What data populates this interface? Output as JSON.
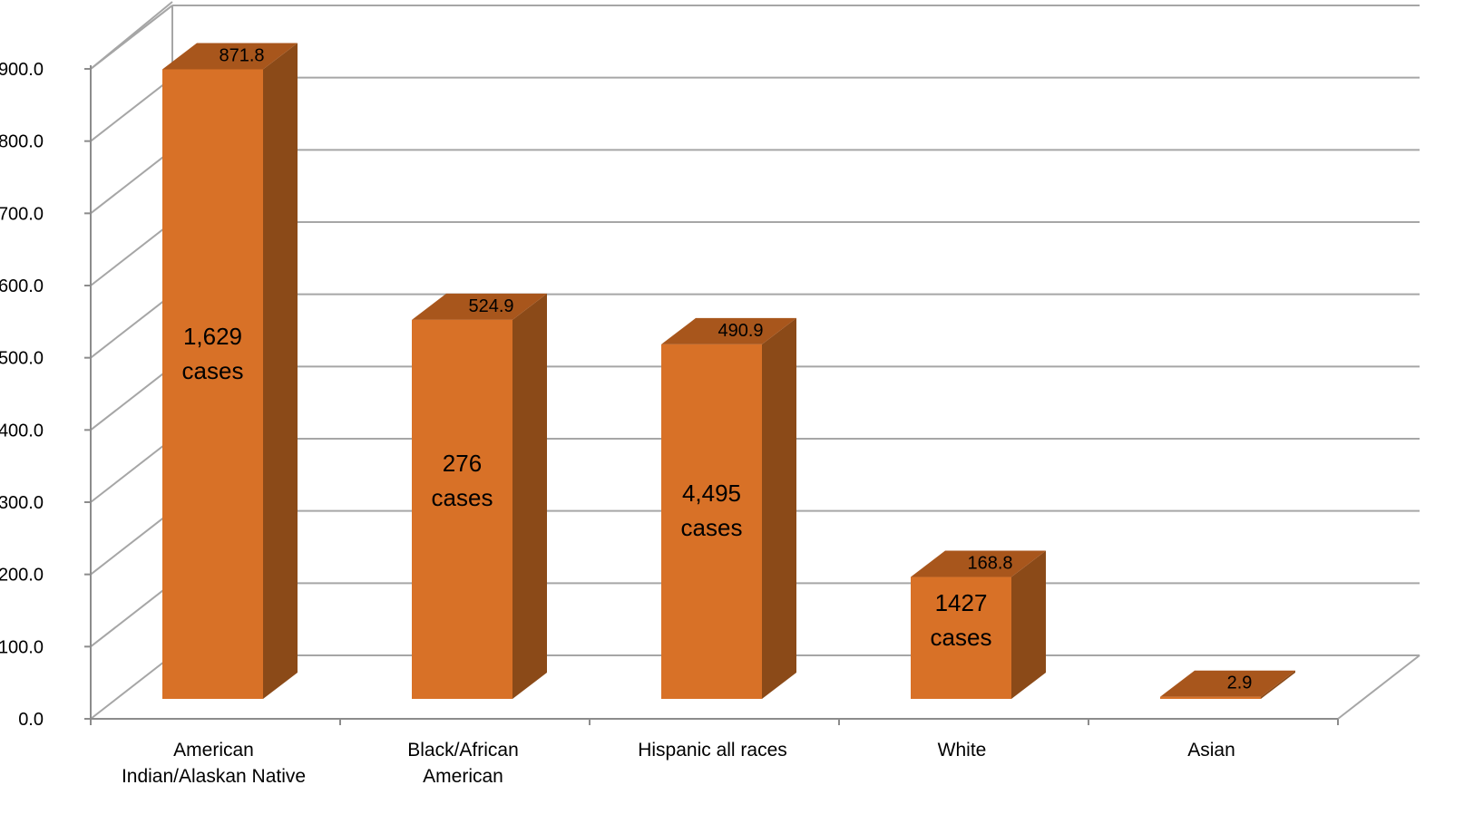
{
  "chart_data": {
    "type": "bar",
    "style": "3d-column",
    "categories": [
      [
        "American",
        "Indian/Alaskan Native"
      ],
      [
        "Black/African",
        "American"
      ],
      [
        "Hispanic all races"
      ],
      [
        "White"
      ],
      [
        "Asian"
      ]
    ],
    "values": [
      871.8,
      524.9,
      490.9,
      168.8,
      2.9
    ],
    "value_labels": [
      "871.8",
      "524.9",
      "490.9",
      "168.8",
      "2.9"
    ],
    "case_labels": [
      [
        "1,629",
        "cases"
      ],
      [
        "276",
        "cases"
      ],
      [
        "4,495",
        "cases"
      ],
      [
        "1427",
        "cases"
      ],
      []
    ],
    "y_ticks": [
      "0.0",
      "100.0",
      "200.0",
      "300.0",
      "400.0",
      "500.0",
      "600.0",
      "700.0",
      "800.0",
      "900.0"
    ],
    "ylim": [
      0,
      900
    ],
    "ystep": 100,
    "grid": true,
    "legend": "none",
    "colors": {
      "bar_front": "#D87127",
      "bar_side": "#8B4A18",
      "bar_top": "#A8561C",
      "grid": "#A6A6A6",
      "axis": "#8C8C8C"
    }
  }
}
